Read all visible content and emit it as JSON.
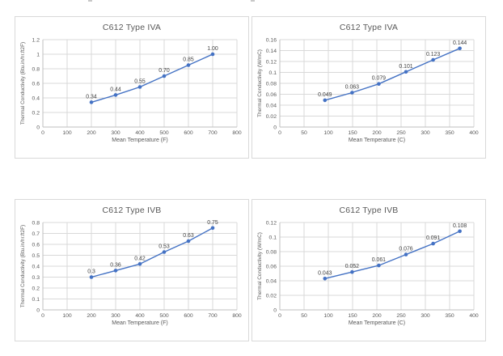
{
  "style": {
    "accent": "#4472C4",
    "grid_color": "#d9d9d9",
    "axis_color": "#bfbfbf",
    "title_color": "#595959",
    "tick_color": "#595959",
    "data_label_color": "#404040",
    "panel_border": "#d9d9d9",
    "background": "#ffffff"
  },
  "chart_data": [
    {
      "type": "line",
      "title": "C612 Type IVA",
      "xlabel": "Mean Temperature (F)",
      "ylabel": "Thermal Conductivity (Btu.in/hr.ft2F)",
      "x": [
        200,
        300,
        400,
        500,
        600,
        700
      ],
      "values": [
        0.34,
        0.44,
        0.55,
        0.7,
        0.85,
        1.0
      ],
      "point_labels": [
        "0.34",
        "0.44",
        "0.55",
        "0.70",
        "0.85",
        "1.00"
      ],
      "xlim": [
        0,
        800
      ],
      "xticks": [
        0,
        100,
        200,
        300,
        400,
        500,
        600,
        700,
        800
      ],
      "xtick_labels": [
        "0",
        "100",
        "200",
        "300",
        "400",
        "500",
        "600",
        "700",
        "800"
      ],
      "ylim": [
        0,
        1.2
      ],
      "yticks": [
        0,
        0.2,
        0.4,
        0.6,
        0.8,
        1,
        1.2
      ],
      "ytick_labels": [
        "0",
        "0.2",
        "0.4",
        "0.6",
        "0.8",
        "1",
        "1.2"
      ],
      "grid": true,
      "legend": "none",
      "line_color": "#4472C4"
    },
    {
      "type": "line",
      "title": "C612 Type IVA",
      "xlabel": "Mean Temperature (C)",
      "ylabel": "Thermal Conductivity (W/mC)",
      "x": [
        93,
        149,
        204,
        260,
        316,
        371
      ],
      "values": [
        0.049,
        0.063,
        0.079,
        0.101,
        0.123,
        0.144
      ],
      "point_labels": [
        "0.049",
        "0.063",
        "0.079",
        "0.101",
        "0.123",
        "0.144"
      ],
      "xlim": [
        0,
        400
      ],
      "xticks": [
        0,
        50,
        100,
        150,
        200,
        250,
        300,
        350,
        400
      ],
      "xtick_labels": [
        "0",
        "50",
        "100",
        "150",
        "200",
        "250",
        "300",
        "350",
        "400"
      ],
      "ylim": [
        0,
        0.16
      ],
      "yticks": [
        0,
        0.02,
        0.04,
        0.06,
        0.08,
        0.1,
        0.12,
        0.14,
        0.16
      ],
      "ytick_labels": [
        "0",
        "0.02",
        "0.04",
        "0.06",
        "0.08",
        "0.1",
        "0.12",
        "0.14",
        "0.16"
      ],
      "grid": true,
      "legend": "none",
      "line_color": "#4472C4"
    },
    {
      "type": "line",
      "title": "C612 Type IVB",
      "xlabel": "Mean Temperature (F)",
      "ylabel": "Thermal Conductivity (Btu.in/hr.ft2F)",
      "x": [
        200,
        300,
        400,
        500,
        600,
        700
      ],
      "values": [
        0.3,
        0.36,
        0.42,
        0.53,
        0.63,
        0.75
      ],
      "point_labels": [
        "0.3",
        "0.36",
        "0.42",
        "0.53",
        "0.63",
        "0.75"
      ],
      "xlim": [
        0,
        800
      ],
      "xticks": [
        0,
        100,
        200,
        300,
        400,
        500,
        600,
        700,
        800
      ],
      "xtick_labels": [
        "0",
        "100",
        "200",
        "300",
        "400",
        "500",
        "600",
        "700",
        "800"
      ],
      "ylim": [
        0,
        0.8
      ],
      "yticks": [
        0,
        0.1,
        0.2,
        0.3,
        0.4,
        0.5,
        0.6,
        0.7,
        0.8
      ],
      "ytick_labels": [
        "0",
        "0.1",
        "0.2",
        "0.3",
        "0.4",
        "0.5",
        "0.6",
        "0.7",
        "0.8"
      ],
      "grid": true,
      "legend": "none",
      "line_color": "#4472C4"
    },
    {
      "type": "line",
      "title": "C612 Type IVB",
      "xlabel": "Mean Temperature (C)",
      "ylabel": "Thermal Conductivity (W/mC)",
      "x": [
        93,
        149,
        204,
        260,
        316,
        371
      ],
      "values": [
        0.043,
        0.052,
        0.061,
        0.076,
        0.091,
        0.108
      ],
      "point_labels": [
        "0.043",
        "0.052",
        "0.061",
        "0.076",
        "0.091",
        "0.108"
      ],
      "xlim": [
        0,
        400
      ],
      "xticks": [
        0,
        50,
        100,
        150,
        200,
        250,
        300,
        350,
        400
      ],
      "xtick_labels": [
        "0",
        "50",
        "100",
        "150",
        "200",
        "250",
        "300",
        "350",
        "400"
      ],
      "ylim": [
        0,
        0.12
      ],
      "yticks": [
        0,
        0.02,
        0.04,
        0.06,
        0.08,
        0.1,
        0.12
      ],
      "ytick_labels": [
        "0",
        "0.02",
        "0.04",
        "0.06",
        "0.08",
        "0.1",
        "0.12"
      ],
      "grid": true,
      "legend": "none",
      "line_color": "#4472C4"
    }
  ]
}
